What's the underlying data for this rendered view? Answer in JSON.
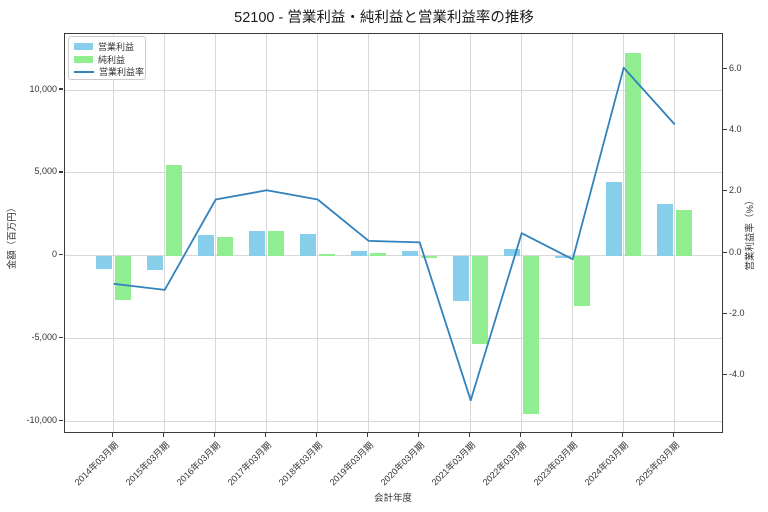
{
  "title": "52100 - 営業利益・純利益と営業利益率の推移",
  "legend": {
    "items": [
      {
        "label": "営業利益",
        "type": "patch",
        "color": "#87ceeb"
      },
      {
        "label": "純利益",
        "type": "patch",
        "color": "#90ee90"
      },
      {
        "label": "営業利益率",
        "type": "line",
        "color": "#3182bd"
      }
    ]
  },
  "axes": {
    "x": {
      "label": "会計年度",
      "tick_labels": [
        "2014年03月期",
        "2015年03月期",
        "2016年03月期",
        "2017年03月期",
        "2018年03月期",
        "2019年03月期",
        "2020年03月期",
        "2021年03月期",
        "2022年03月期",
        "2023年03月期",
        "2024年03月期",
        "2025年03月期"
      ]
    },
    "y_left": {
      "label": "金額（百万円）",
      "ticks": [
        10000,
        5000,
        0,
        -5000,
        -10000
      ],
      "tick_labels": [
        "10,000",
        "5,000",
        "0",
        "-5,000",
        "-10,000"
      ]
    },
    "y_right": {
      "label": "営業利益率（%）",
      "ticks": [
        6.0,
        4.0,
        2.0,
        0.0,
        -2.0,
        -4.0
      ],
      "tick_labels": [
        "6.0",
        "4.0",
        "2.0",
        "0.0",
        "-2.0",
        "-4.0"
      ]
    }
  },
  "chart_data": {
    "type": "bar",
    "title": "52100 - 営業利益・純利益と営業利益率の推移",
    "xlabel": "会計年度",
    "ylabel_left": "金額（百万円）",
    "ylabel_right": "営業利益率（%）",
    "categories": [
      "2014年03月期",
      "2015年03月期",
      "2016年03月期",
      "2017年03月期",
      "2018年03月期",
      "2019年03月期",
      "2020年03月期",
      "2021年03月期",
      "2022年03月期",
      "2023年03月期",
      "2024年03月期",
      "2025年03月期"
    ],
    "series": [
      {
        "name": "営業利益",
        "type": "bar",
        "axis": "left",
        "color": "#87ceeb",
        "values": [
          -800,
          -850,
          1250,
          1500,
          1300,
          280,
          280,
          -2750,
          400,
          -140,
          4450,
          3100
        ]
      },
      {
        "name": "純利益",
        "type": "bar",
        "axis": "left",
        "color": "#90ee90",
        "values": [
          -2650,
          5450,
          1150,
          1500,
          100,
          170,
          -130,
          -5350,
          -9550,
          -3050,
          12250,
          2750
        ]
      },
      {
        "name": "営業利益率",
        "type": "line",
        "axis": "right",
        "color": "#3182bd",
        "values": [
          -1.0,
          -1.2,
          1.75,
          2.05,
          1.75,
          0.4,
          0.35,
          -4.8,
          0.65,
          -0.2,
          6.05,
          4.2
        ]
      }
    ],
    "ylim_left": [
      -10750,
      13380
    ],
    "ylim_right": [
      -5.9,
      7.15
    ],
    "grid": true,
    "legend_position": "upper-left"
  },
  "colors": {
    "operating_profit_bar": "#87ceeb",
    "net_profit_bar": "#90ee90",
    "margin_line": "#3182bd",
    "gridline": "#d8d8d8",
    "spine": "#3a3a3a",
    "background": "#ffffff"
  }
}
